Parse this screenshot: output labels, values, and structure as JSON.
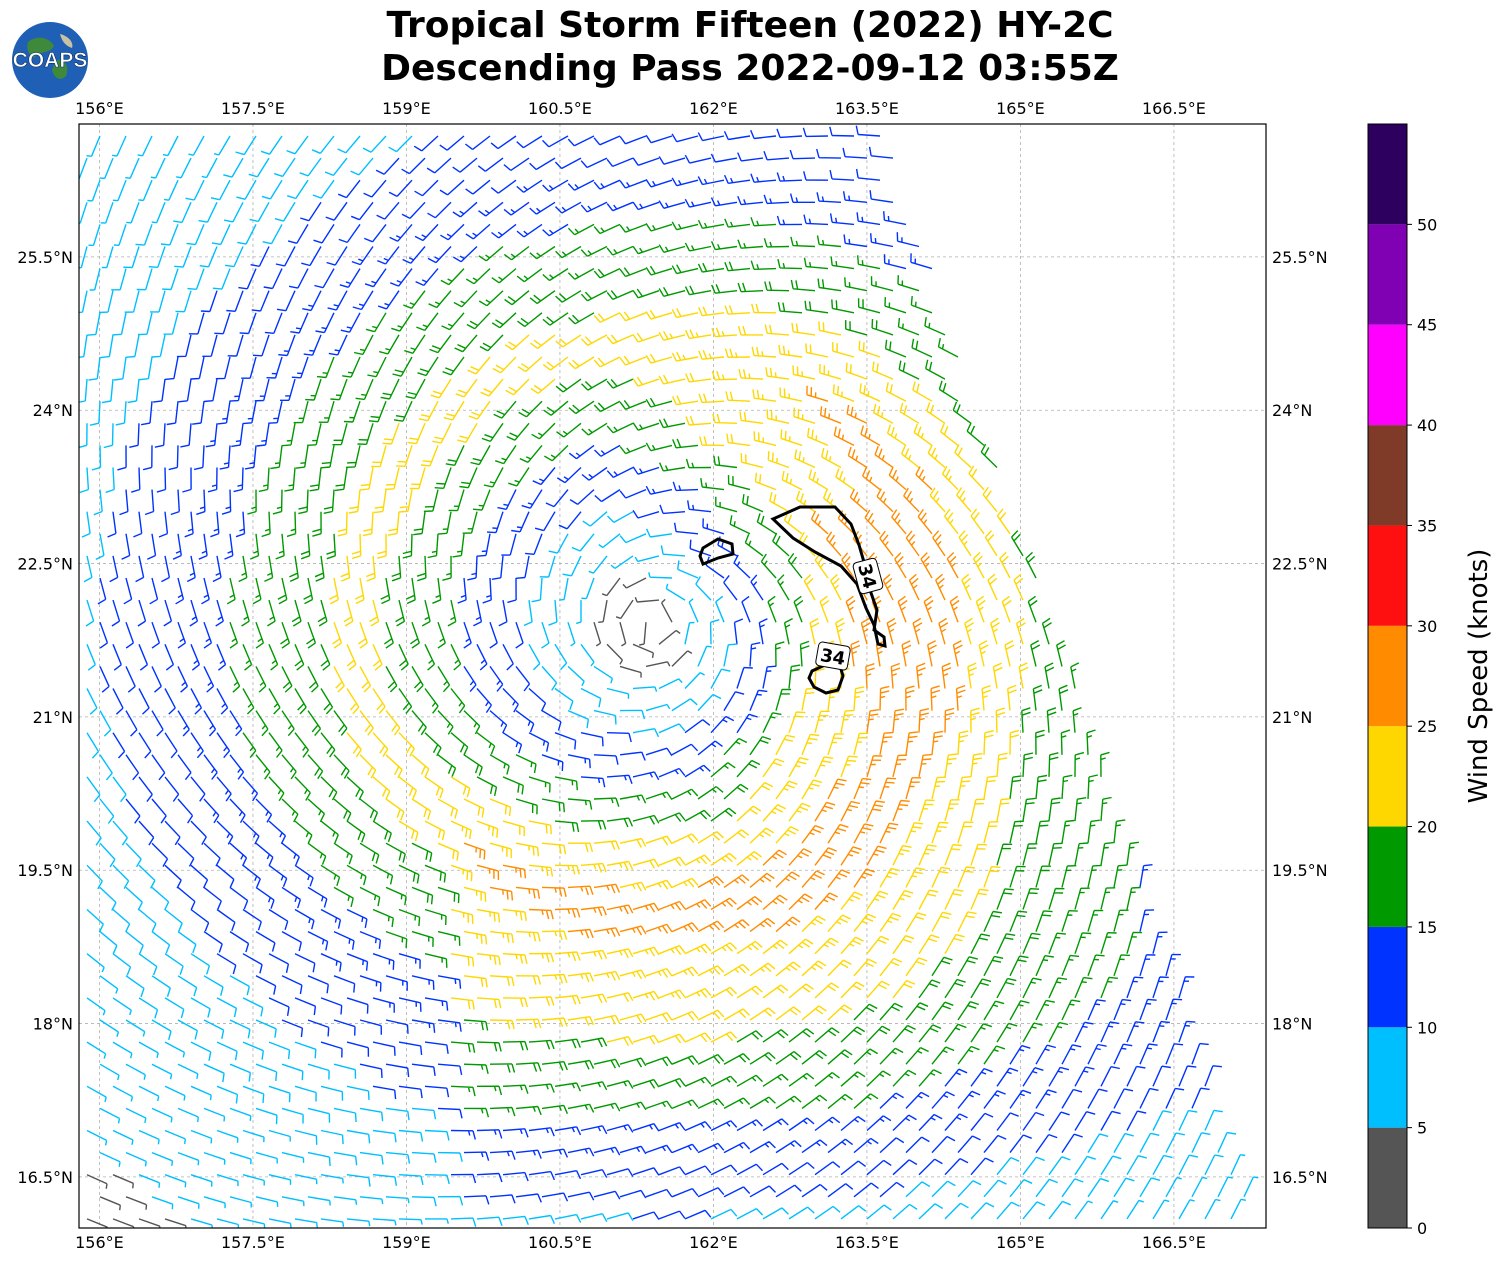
{
  "header": {
    "title_line1": "Tropical Storm Fifteen (2022) HY-2C",
    "title_line2": "Descending Pass 2022-09-12 03:55Z",
    "logo_text": "COAPS"
  },
  "map": {
    "lon_ticks": [
      "156°E",
      "157.5°E",
      "159°E",
      "160.5°E",
      "162°E",
      "163.5°E",
      "165°E",
      "166.5°E"
    ],
    "lat_ticks": [
      "25.5°N",
      "24°N",
      "22.5°N",
      "21°N",
      "19.5°N",
      "18°N",
      "16.5°N"
    ],
    "lon_range": [
      155.8,
      167.4
    ],
    "lat_range": [
      16.0,
      26.8
    ],
    "storm_center": {
      "lon": 161.4,
      "lat": 21.9
    },
    "contour_label": "34",
    "contour_labels": [
      "34",
      "34"
    ]
  },
  "colorbar": {
    "label": "Wind Speed (knots)",
    "ticks": [
      "0",
      "5",
      "10",
      "15",
      "20",
      "25",
      "30",
      "35",
      "40",
      "45",
      "50"
    ],
    "bins": [
      {
        "min": 0,
        "max": 5,
        "color": "#555555"
      },
      {
        "min": 5,
        "max": 10,
        "color": "#00bfff"
      },
      {
        "min": 10,
        "max": 15,
        "color": "#0033ff"
      },
      {
        "min": 15,
        "max": 20,
        "color": "#009900"
      },
      {
        "min": 20,
        "max": 25,
        "color": "#ffd700"
      },
      {
        "min": 25,
        "max": 30,
        "color": "#ff8c00"
      },
      {
        "min": 30,
        "max": 35,
        "color": "#ff1010"
      },
      {
        "min": 35,
        "max": 40,
        "color": "#7f3b28"
      },
      {
        "min": 40,
        "max": 45,
        "color": "#ff00ff"
      },
      {
        "min": 45,
        "max": 50,
        "color": "#8000b4"
      },
      {
        "min": 50,
        "max": 55,
        "color": "#2d005f"
      }
    ]
  }
}
